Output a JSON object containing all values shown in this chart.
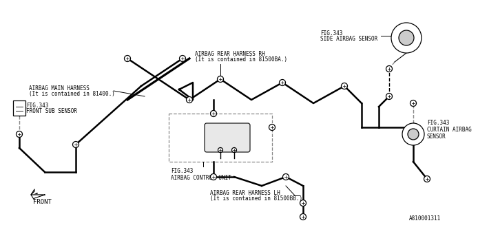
{
  "bg_color": "#ffffff",
  "line_color": "#000000",
  "dashed_color": "#888888",
  "text_color": "#000000",
  "part_number": "A810001311",
  "labels": {
    "main_harness_line1": "AIRBAG MAIN HARNESS",
    "main_harness_line2": "(It is contained in 81400.)",
    "rear_rh_line1": "AIRBAG REAR HARNESS RH",
    "rear_rh_line2": "(It is contained in 81500BA.)",
    "rear_lh_line1": "AIRBAG REAR HARNESS LH",
    "rear_lh_line2": "(It is contained in 81500BB.)",
    "front_sub": "FIG.343\nFRONT SUB SENSOR",
    "side_airbag_fig": "FIG.343",
    "side_airbag": "SIDE AIRBAG SENSOR",
    "curtain_fig": "FIG.343",
    "curtain_line1": "CURTAIN AIRBAG",
    "curtain_line2": "SENSOR",
    "control_unit_fig": "FIG.343",
    "control_unit": "AIRBAG CONTROL UNIT",
    "front_arrow": "FRONT"
  }
}
